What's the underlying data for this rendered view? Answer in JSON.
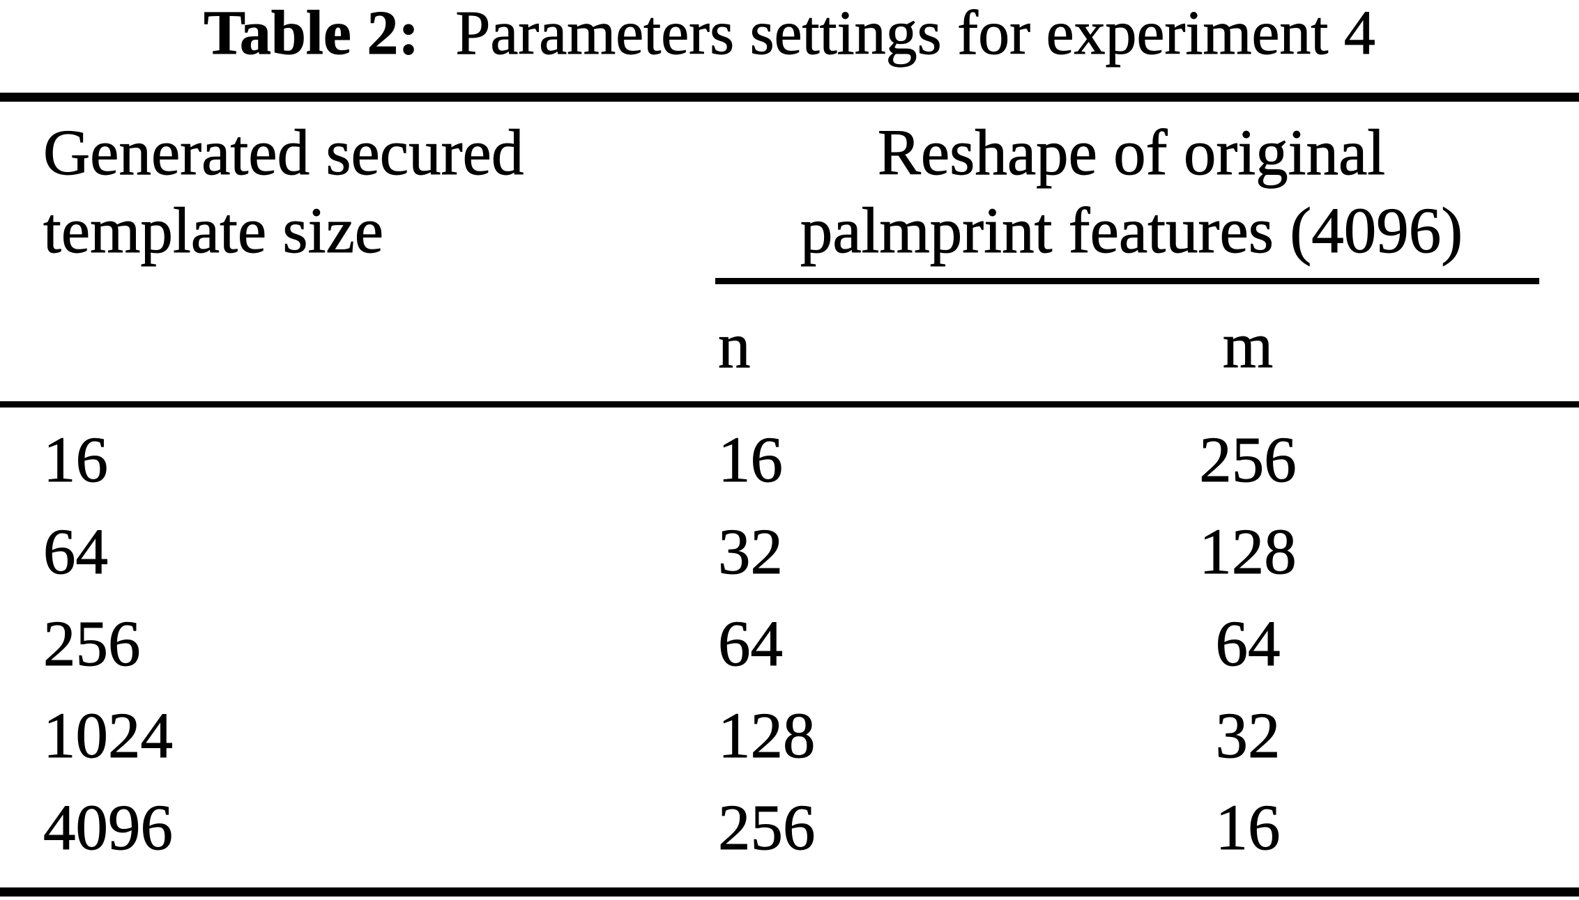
{
  "caption": {
    "label": "Table 2:",
    "text": "Parameters settings for experiment 4"
  },
  "table": {
    "left_header": "Generated secured template size",
    "group_header": "Reshape of original palmprint features (4096)",
    "subheader_n": "n",
    "subheader_m": "m",
    "rows": [
      {
        "template_size": "16",
        "n": "16",
        "m": "256"
      },
      {
        "template_size": "64",
        "n": "32",
        "m": "128"
      },
      {
        "template_size": "256",
        "n": "64",
        "m": "64"
      },
      {
        "template_size": "1024",
        "n": "128",
        "m": "32"
      },
      {
        "template_size": "4096",
        "n": "256",
        "m": "16"
      }
    ]
  },
  "colors": {
    "text": "#000000",
    "background": "#ffffff",
    "rule": "#000000"
  }
}
